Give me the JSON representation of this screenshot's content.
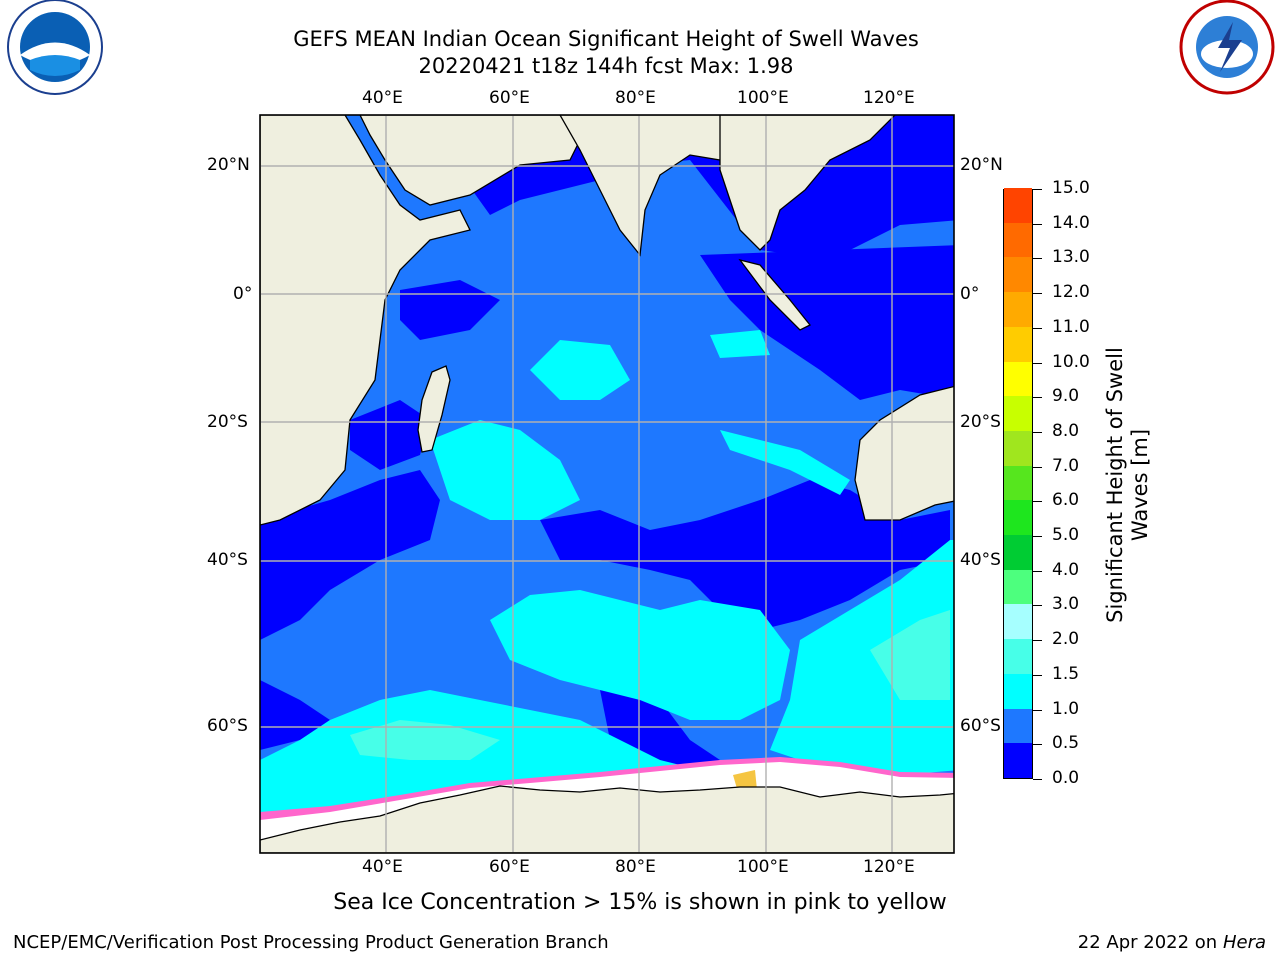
{
  "title_line1": "GEFS MEAN Indian Ocean Significant Height of Swell Waves",
  "title_line2": "20220421 t18z 144h fcst   Max: 1.98",
  "longitude_labels": [
    "40°E",
    "60°E",
    "80°E",
    "100°E",
    "120°E"
  ],
  "latitude_labels": [
    "20°N",
    "0°",
    "20°S",
    "40°S",
    "60°S"
  ],
  "colorbar": {
    "title": "Significant Height of Swell Waves [m]",
    "ticks": [
      "0.0",
      "0.5",
      "1.0",
      "1.5",
      "2.0",
      "3.0",
      "4.0",
      "5.0",
      "6.0",
      "7.0",
      "8.0",
      "9.0",
      "10.0",
      "11.0",
      "12.0",
      "13.0",
      "14.0",
      "15.0"
    ],
    "colors": [
      "#0000ff",
      "#1e78ff",
      "#00ffff",
      "#47ffe8",
      "#a6ffff",
      "#4dff7e",
      "#00cc33",
      "#1ee61e",
      "#56e61e",
      "#a0e61e",
      "#c8ff00",
      "#ffff00",
      "#ffcc00",
      "#ffaa00",
      "#ff8800",
      "#ff6a00",
      "#ff4400",
      "#ff0000"
    ]
  },
  "footnote": "Sea Ice Concentration > 15% is shown in pink to yellow",
  "credit": "NCEP/EMC/Verification Post Processing Product Generation Branch",
  "date_prefix": "22 Apr 2022 on ",
  "date_host": "Hera",
  "logos": {
    "left": "NOAA",
    "right": "NATIONAL WEATHER SERVICE"
  },
  "map_colors": {
    "land": "#efefdf",
    "ice": "#ffffff",
    "grid": "#b0b0b0"
  }
}
